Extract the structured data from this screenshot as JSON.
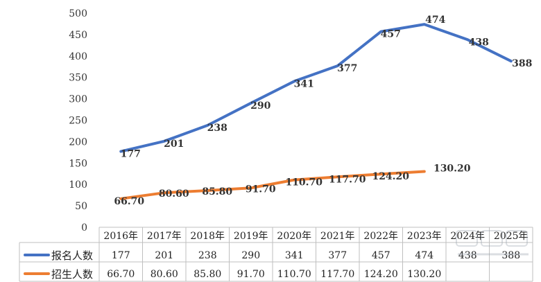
{
  "chart_data": {
    "type": "line",
    "categories": [
      "2016年",
      "2017年",
      "2018年",
      "2019年",
      "2020年",
      "2021年",
      "2022年",
      "2023年",
      "2024年",
      "2025年"
    ],
    "ylim": [
      0,
      500
    ],
    "yticks": [
      0,
      50,
      100,
      150,
      200,
      250,
      300,
      350,
      400,
      450,
      500
    ],
    "series": [
      {
        "name": "报名人数",
        "color": "#4472C4",
        "values": [
          177,
          201,
          238,
          290,
          341,
          377,
          457,
          474,
          438,
          388
        ],
        "labels": [
          "177",
          "201",
          "238",
          "290",
          "341",
          "377",
          "457",
          "474",
          "438",
          "388"
        ]
      },
      {
        "name": "招生人数",
        "color": "#ED7D31",
        "values": [
          66.7,
          80.6,
          85.8,
          91.7,
          110.7,
          117.7,
          124.2,
          130.2,
          null,
          null
        ],
        "labels": [
          "66.70",
          "80.60",
          "85.80",
          "91.70",
          "110.70",
          "117.70",
          "124.20",
          "130.20",
          "",
          ""
        ]
      }
    ],
    "data_table": true,
    "grid": false
  }
}
